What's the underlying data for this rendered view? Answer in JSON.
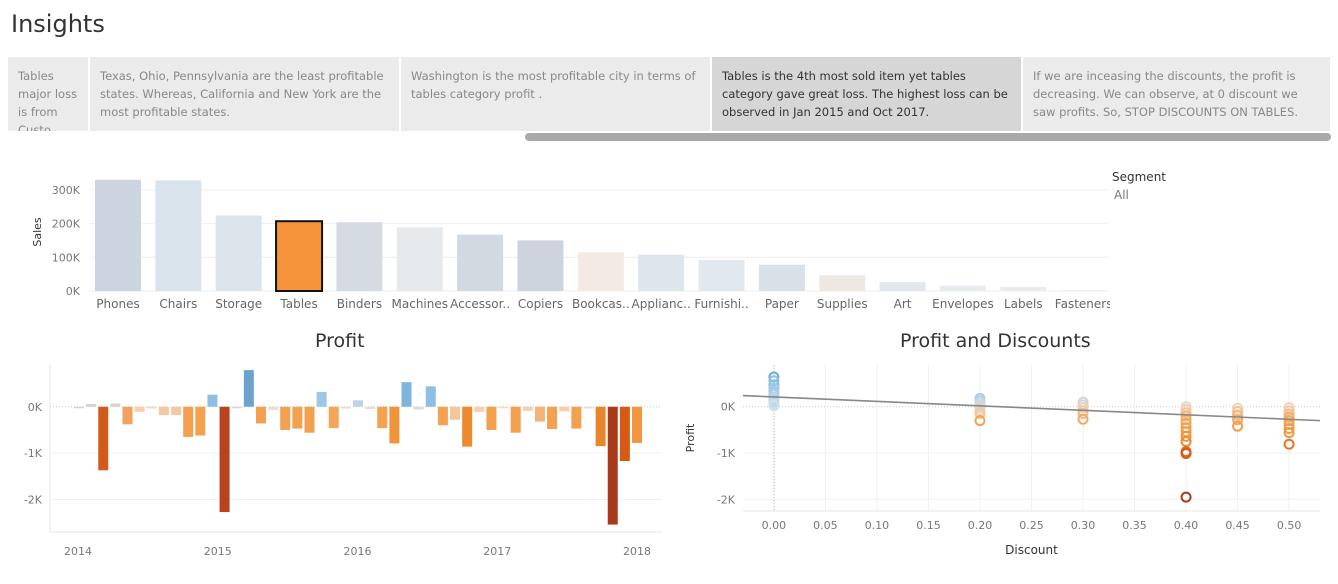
{
  "page": {
    "title": "Insights"
  },
  "story_points": [
    {
      "text": "Tables major loss is from Custo..",
      "active": false
    },
    {
      "text": "Texas, Ohio, Pennsylvania are the least profitable states. Whereas, California and New York are the most profitable states.",
      "active": false
    },
    {
      "text": "Washington is the most profitable city in terms of tables category profit .",
      "active": false
    },
    {
      "text": "Tables is the 4th most sold item yet tables category gave great loss. The highest loss can be observed in Jan 2015 and Oct 2017.",
      "active": true
    },
    {
      "text": "If we are inceasing the discounts, the profit is decreasing. We can observe, at 0 discount we saw profits. So, STOP DISCOUNTS ON TABLES.",
      "active": false
    }
  ],
  "segment_filter": {
    "label": "Segment",
    "value": "All"
  },
  "chart_data": [
    {
      "type": "bar",
      "ylabel": "Sales",
      "ylim": [
        0,
        350000
      ],
      "y_ticks": [
        0,
        100000,
        200000,
        300000
      ],
      "y_tick_labels": [
        "0K",
        "100K",
        "200K",
        "300K"
      ],
      "categories": [
        "Phones",
        "Chairs",
        "Storage",
        "Tables",
        "Binders",
        "Machines",
        "Accessor..",
        "Copiers",
        "Bookcas..",
        "Applianc..",
        "Furnishi..",
        "Paper",
        "Supplies",
        "Art",
        "Envelopes",
        "Labels",
        "Fasteners"
      ],
      "values": [
        330000,
        328000,
        224000,
        207000,
        204000,
        189000,
        167000,
        150000,
        115000,
        108000,
        92000,
        78000,
        47000,
        27000,
        16000,
        12300,
        3000
      ],
      "colors": [
        "#ccd5df",
        "#d9e3ec",
        "#dce5ec",
        "#f5943a",
        "#d4dbe3",
        "#e6eaec",
        "#d2d9e1",
        "#cdd4dd",
        "#f3ebe3",
        "#dde5ed",
        "#e1e8ee",
        "#d8e0e8",
        "#ede9e2",
        "#e1e7ed",
        "#e6ebf0",
        "#e8ecf0",
        "#eceff1"
      ],
      "highlight": "Tables"
    },
    {
      "type": "bar",
      "title": "Profit",
      "ylim": [
        -2700,
        900
      ],
      "y_ticks": [
        0,
        -1000,
        -2000
      ],
      "y_tick_labels": [
        "0K",
        "-1K",
        "-2K"
      ],
      "x_ticks": [
        2014,
        2015,
        2016,
        2017,
        2018
      ],
      "x_tick_labels": [
        "2014",
        "2015",
        "2016",
        "2017",
        "2018"
      ],
      "values": [
        -30,
        60,
        -1370,
        70,
        -380,
        -110,
        -40,
        -180,
        -180,
        -650,
        -620,
        260,
        -2270,
        -30,
        790,
        -360,
        -70,
        -500,
        -470,
        -560,
        320,
        -460,
        -40,
        140,
        -50,
        -460,
        -790,
        530,
        -60,
        440,
        -400,
        -280,
        -860,
        -110,
        -500,
        -30,
        -560,
        -90,
        -320,
        -480,
        -100,
        -470,
        -40,
        -850,
        -2540,
        -1170,
        -780
      ],
      "colors": [
        "#d3d3d3",
        "#d9d3cd",
        "#d05b1a",
        "#d8d1cb",
        "#f1a25d",
        "#f6cfb0",
        "#f2dbc6",
        "#f3c9a5",
        "#f3c9a5",
        "#f3a14f",
        "#f3a14f",
        "#8ebfe0",
        "#b8431f",
        "#ddd6d0",
        "#6ba3cf",
        "#f3a150",
        "#eeddd0",
        "#f3a150",
        "#f3a150",
        "#f1a04f",
        "#9cc8e6",
        "#f4a558",
        "#e7dfd7",
        "#bfd3e6",
        "#e6dfd8",
        "#f4a252",
        "#ef9539",
        "#7fb4dc",
        "#dcd8d4",
        "#8dbfe3",
        "#f4a252",
        "#f6c69a",
        "#ee8a2d",
        "#f6cfb0",
        "#f2a04d",
        "#f2dbc6",
        "#f2a04d",
        "#f3d0b4",
        "#f4b37a",
        "#f3a150",
        "#f4ceae",
        "#f3a150",
        "#e7dfd7",
        "#e9852b",
        "#a8391a",
        "#d55a13",
        "#f39640"
      ]
    },
    {
      "type": "scatter",
      "title": "Profit and Discounts",
      "xlabel": "Discount",
      "ylabel": "Profit",
      "xlim": [
        -0.03,
        0.53
      ],
      "ylim": [
        -2250,
        900
      ],
      "x_ticks": [
        0.0,
        0.05,
        0.1,
        0.15,
        0.2,
        0.25,
        0.3,
        0.35,
        0.4,
        0.45,
        0.5
      ],
      "x_tick_labels": [
        "0.00",
        "0.05",
        "0.10",
        "0.15",
        "0.20",
        "0.25",
        "0.30",
        "0.35",
        "0.40",
        "0.45",
        "0.50"
      ],
      "y_ticks": [
        0,
        -1000,
        -2000
      ],
      "y_tick_labels": [
        "0K",
        "-1K",
        "-2K"
      ],
      "trend_line": {
        "x": [
          -0.03,
          0.53
        ],
        "y": [
          240,
          -300
        ]
      },
      "points": [
        {
          "x": 0.0,
          "y": 640,
          "c": "#6baed6"
        },
        {
          "x": 0.0,
          "y": 560,
          "c": "#8ec0e0"
        },
        {
          "x": 0.0,
          "y": 470,
          "c": "#8ec0e0"
        },
        {
          "x": 0.0,
          "y": 400,
          "c": "#9fc9e4"
        },
        {
          "x": 0.0,
          "y": 330,
          "c": "#9fc9e4"
        },
        {
          "x": 0.0,
          "y": 270,
          "c": "#a9cde6"
        },
        {
          "x": 0.0,
          "y": 210,
          "c": "#b0d1e7"
        },
        {
          "x": 0.0,
          "y": 160,
          "c": "#b8d5e8"
        },
        {
          "x": 0.0,
          "y": 110,
          "c": "#c0d8e9"
        },
        {
          "x": 0.0,
          "y": 60,
          "c": "#c8dcea"
        },
        {
          "x": 0.0,
          "y": 20,
          "c": "#d0e0eb"
        },
        {
          "x": 0.2,
          "y": 180,
          "c": "#a9cde6"
        },
        {
          "x": 0.2,
          "y": 130,
          "c": "#b0d1e7"
        },
        {
          "x": 0.2,
          "y": 80,
          "c": "#c0d8e9"
        },
        {
          "x": 0.2,
          "y": 30,
          "c": "#d0d6dc"
        },
        {
          "x": 0.2,
          "y": -20,
          "c": "#e0d6cc"
        },
        {
          "x": 0.2,
          "y": -80,
          "c": "#f0d0b0"
        },
        {
          "x": 0.2,
          "y": -150,
          "c": "#f4c494"
        },
        {
          "x": 0.2,
          "y": -300,
          "c": "#f4a252"
        },
        {
          "x": 0.3,
          "y": 100,
          "c": "#d6d6d6"
        },
        {
          "x": 0.3,
          "y": 40,
          "c": "#d8d2cc"
        },
        {
          "x": 0.3,
          "y": -20,
          "c": "#e6d4c0"
        },
        {
          "x": 0.3,
          "y": -90,
          "c": "#f0c8a0"
        },
        {
          "x": 0.3,
          "y": -150,
          "c": "#f2bc8a"
        },
        {
          "x": 0.3,
          "y": -270,
          "c": "#f4a860"
        },
        {
          "x": 0.4,
          "y": 0,
          "c": "#e6d8cc"
        },
        {
          "x": 0.4,
          "y": -60,
          "c": "#f0d0b0"
        },
        {
          "x": 0.4,
          "y": -130,
          "c": "#f4c494"
        },
        {
          "x": 0.4,
          "y": -200,
          "c": "#f4b67a"
        },
        {
          "x": 0.4,
          "y": -280,
          "c": "#f4ac6a"
        },
        {
          "x": 0.4,
          "y": -360,
          "c": "#f4a65e"
        },
        {
          "x": 0.4,
          "y": -450,
          "c": "#f4a252"
        },
        {
          "x": 0.4,
          "y": -540,
          "c": "#f29c48"
        },
        {
          "x": 0.4,
          "y": -640,
          "c": "#f0963e"
        },
        {
          "x": 0.4,
          "y": -750,
          "c": "#ec8a30"
        },
        {
          "x": 0.4,
          "y": -970,
          "c": "#e06a1c"
        },
        {
          "x": 0.4,
          "y": -1010,
          "c": "#d85a14"
        },
        {
          "x": 0.4,
          "y": -1950,
          "c": "#a8391a"
        },
        {
          "x": 0.45,
          "y": -30,
          "c": "#f0d4b8"
        },
        {
          "x": 0.45,
          "y": -100,
          "c": "#f4c494"
        },
        {
          "x": 0.45,
          "y": -180,
          "c": "#f4b67a"
        },
        {
          "x": 0.45,
          "y": -280,
          "c": "#f4a860"
        },
        {
          "x": 0.45,
          "y": -420,
          "c": "#f29c48"
        },
        {
          "x": 0.5,
          "y": -20,
          "c": "#f0d4b8"
        },
        {
          "x": 0.5,
          "y": -90,
          "c": "#f4c8a0"
        },
        {
          "x": 0.5,
          "y": -160,
          "c": "#f4bc88"
        },
        {
          "x": 0.5,
          "y": -230,
          "c": "#f4b070"
        },
        {
          "x": 0.5,
          "y": -300,
          "c": "#f4a860"
        },
        {
          "x": 0.5,
          "y": -380,
          "c": "#f4a252"
        },
        {
          "x": 0.5,
          "y": -470,
          "c": "#f29c48"
        },
        {
          "x": 0.5,
          "y": -560,
          "c": "#f0963e"
        },
        {
          "x": 0.5,
          "y": -810,
          "c": "#e8762a"
        }
      ]
    }
  ]
}
